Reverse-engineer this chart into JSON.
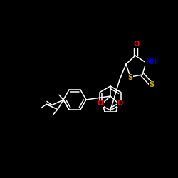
{
  "background_color": "#000000",
  "bond_color": "#ffffff",
  "atom_colors": {
    "O": "#ff0000",
    "S": "#ccaa00",
    "N": "#0000cc",
    "C": "#ffffff"
  },
  "figsize": [
    2.5,
    2.5
  ],
  "dpi": 100
}
